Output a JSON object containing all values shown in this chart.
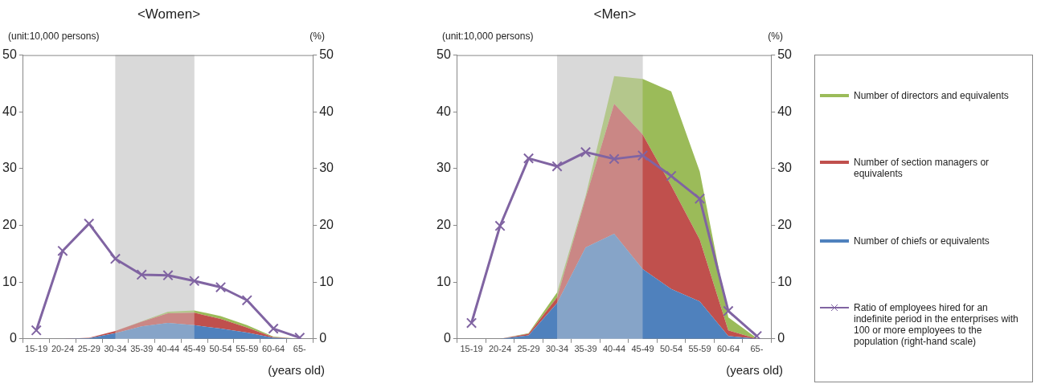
{
  "chart_data": [
    {
      "type": "area",
      "title": "<Women>",
      "ylabel": "(unit:10,000 persons)",
      "y2label": "(%)",
      "xlabel": "(years old)",
      "categories": [
        "15-19",
        "20-24",
        "25-29",
        "30-34",
        "35-39",
        "40-44",
        "45-49",
        "50-54",
        "55-59",
        "60-64",
        "65-"
      ],
      "stacked": true,
      "ylim": [
        0,
        50
      ],
      "yticks": [
        0,
        10,
        20,
        30,
        40,
        50
      ],
      "y2lim": [
        0,
        50
      ],
      "y2ticks": [
        0,
        10,
        20,
        30,
        40,
        50
      ],
      "grid": false,
      "legend": false,
      "bands": [
        {
          "axis": "x",
          "from": "30-34",
          "to": "45-49",
          "color": "#d9d9d9"
        }
      ],
      "series": [
        {
          "color": "#4f81bd",
          "values": [
            0,
            0,
            0.1,
            1.0,
            2.2,
            2.8,
            2.4,
            1.8,
            1.1,
            0.2,
            0
          ]
        },
        {
          "color": "#c0504d",
          "values": [
            0,
            0,
            0.1,
            0.4,
            0.8,
            1.7,
            2.2,
            1.7,
            0.9,
            0.1,
            0
          ]
        },
        {
          "color": "#9bbb59",
          "values": [
            0,
            0,
            0,
            0,
            0.1,
            0.3,
            0.4,
            0.5,
            0.4,
            0.1,
            0
          ]
        },
        {
          "type": "line",
          "axis": "y2",
          "color": "#8064a2",
          "marker": "cross",
          "values": [
            1.5,
            15.5,
            20.3,
            14.1,
            11.3,
            11.2,
            10.2,
            9.1,
            6.8,
            1.8,
            0.2
          ]
        }
      ]
    },
    {
      "type": "area",
      "title": "<Men>",
      "ylabel": "(unit:10,000 persons)",
      "y2label": "(%)",
      "xlabel": "(years old)",
      "categories": [
        "15-19",
        "20-24",
        "25-29",
        "30-34",
        "35-39",
        "40-44",
        "45-49",
        "50-54",
        "55-59",
        "60-64",
        "65-"
      ],
      "stacked": true,
      "ylim": [
        0,
        50
      ],
      "yticks": [
        0,
        10,
        20,
        30,
        40,
        50
      ],
      "y2lim": [
        0,
        50
      ],
      "y2ticks": [
        0,
        10,
        20,
        30,
        40,
        50
      ],
      "grid": false,
      "legend": "right",
      "bands": [
        {
          "axis": "x",
          "from": "30-34",
          "to": "45-49",
          "color": "#d9d9d9"
        }
      ],
      "series": [
        {
          "name": "Number of chiefs or equivalents",
          "color": "#4f81bd",
          "values": [
            0,
            0,
            0.6,
            6.3,
            16.1,
            18.5,
            12.3,
            8.8,
            6.6,
            0.5,
            0
          ]
        },
        {
          "name": "Number of section managers or equivalents",
          "color": "#c0504d",
          "values": [
            0,
            0,
            0.3,
            1.0,
            8.7,
            22.9,
            23.7,
            18.2,
            10.9,
            1.0,
            0
          ]
        },
        {
          "name": "Number of directors and equivalents",
          "color": "#9bbb59",
          "values": [
            0,
            0,
            0.1,
            0.9,
            0.4,
            4.9,
            9.8,
            16.6,
            12.0,
            2.3,
            0.1
          ]
        },
        {
          "type": "line",
          "axis": "y2",
          "name": "Ratio of employees hired for an indefinite period in the enterprises with 100 or more employees to the population (right-hand scale)",
          "color": "#8064a2",
          "marker": "cross",
          "values": [
            2.8,
            19.9,
            31.8,
            30.4,
            32.9,
            31.7,
            32.3,
            28.7,
            24.7,
            4.9,
            0.5
          ]
        }
      ]
    }
  ]
}
